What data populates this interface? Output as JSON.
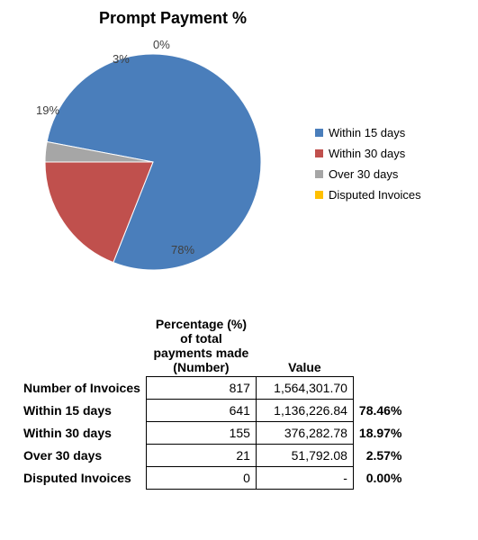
{
  "chart": {
    "type": "pie",
    "title": "Prompt Payment %",
    "title_fontsize": 18,
    "background_color": "#ffffff",
    "slices": [
      {
        "label": "Within 15 days",
        "value": 78,
        "display": "78%",
        "color": "#4a7ebb"
      },
      {
        "label": "Within 30 days",
        "value": 19,
        "display": "19%",
        "color": "#c0504d"
      },
      {
        "label": "Over 30 days",
        "value": 3,
        "display": "3%",
        "color": "#a6a6a6"
      },
      {
        "label": "Disputed Invoices",
        "value": 0,
        "display": "0%",
        "color": "#ffc000"
      }
    ],
    "label_fontsize": 13,
    "label_color": "#404040",
    "legend": {
      "position": "right",
      "swatch_size": 9,
      "fontsize": 13
    }
  },
  "table": {
    "headers": {
      "num": "Percentage (%) of total payments made (Number)",
      "val": "Value"
    },
    "rows": [
      {
        "label": "Number of Invoices",
        "num": "817",
        "val": "1,564,301.70",
        "pct": ""
      },
      {
        "label": "Within 15 days",
        "num": "641",
        "val": "1,136,226.84",
        "pct": "78.46%"
      },
      {
        "label": "Within 30 days",
        "num": "155",
        "val": "376,282.78",
        "pct": "18.97%"
      },
      {
        "label": "Over 30 days",
        "num": "21",
        "val": "51,792.08",
        "pct": "2.57%"
      },
      {
        "label": "Disputed Invoices",
        "num": "0",
        "val": "-",
        "pct": "0.00%"
      }
    ],
    "border_color": "#000000",
    "fontsize": 14,
    "label_fontweight": "bold"
  }
}
